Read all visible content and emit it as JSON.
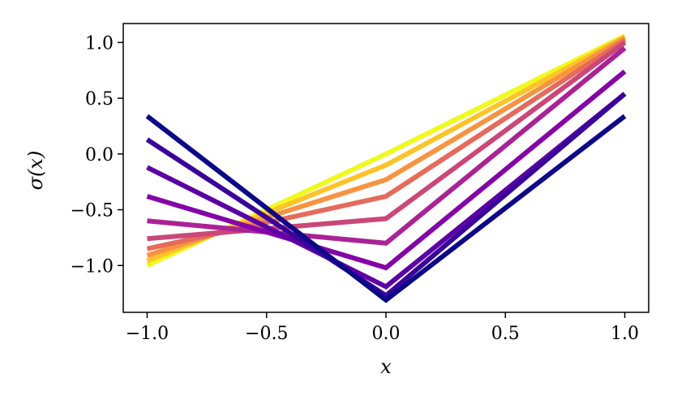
{
  "chart_data": {
    "type": "line",
    "xlabel": "x",
    "ylabel": "σ(x)",
    "xlim": [
      -1.1,
      1.1
    ],
    "ylim": [
      -1.42,
      1.17
    ],
    "xticks": [
      -1.0,
      -0.5,
      0.0,
      0.5,
      1.0
    ],
    "xtick_labels": [
      "−1.0",
      "−0.5",
      "0.0",
      "0.5",
      "1.0"
    ],
    "yticks": [
      -1.0,
      -0.5,
      0.0,
      0.5,
      1.0
    ],
    "ytick_labels": [
      "−1.0",
      "−0.5",
      "0.0",
      "0.5",
      "1.0"
    ],
    "grid": false,
    "legend": "none",
    "x": [
      -1.0,
      0.0,
      1.0
    ],
    "series": [
      {
        "color": "#f0f921",
        "values": [
          -1.0,
          0.0,
          1.06
        ]
      },
      {
        "color": "#fdc328",
        "values": [
          -0.96,
          -0.1,
          1.05
        ]
      },
      {
        "color": "#f89441",
        "values": [
          -0.91,
          -0.23,
          1.04
        ]
      },
      {
        "color": "#e56b5d",
        "values": [
          -0.85,
          -0.38,
          1.02
        ]
      },
      {
        "color": "#cb4778",
        "values": [
          -0.76,
          -0.58,
          1.0
        ]
      },
      {
        "color": "#aa2395",
        "values": [
          -0.6,
          -0.8,
          0.95
        ]
      },
      {
        "color": "#8405a7",
        "values": [
          -0.38,
          -1.02,
          0.74
        ]
      },
      {
        "color": "#5c01a6",
        "values": [
          -0.12,
          -1.19,
          0.54
        ]
      },
      {
        "color": "#3a049a",
        "values": [
          0.13,
          -1.27,
          0.54
        ]
      },
      {
        "color": "#0d0887",
        "values": [
          0.34,
          -1.31,
          0.34
        ]
      }
    ]
  }
}
